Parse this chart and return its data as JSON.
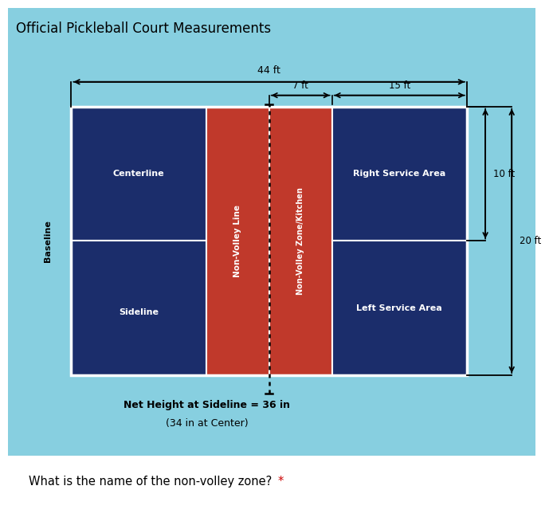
{
  "title": "Official Pickleball Court Measurements",
  "bg_color": "#87cfe0",
  "dark_blue": "#1b2d6b",
  "red": "#c0392b",
  "white": "#ffffff",
  "black": "#000000",
  "question_text": "What is the name of the non-volley zone? *",
  "question_star_color": "#cc0000",
  "net_text_line1": "Net Height at Sideline = 36 in",
  "net_text_line2": "(34 in at Center)",
  "dim_44ft": "44 ft",
  "dim_7ft": "7 ft",
  "dim_15ft": "15 ft",
  "dim_10ft": "10 ft",
  "dim_20ft": "20 ft",
  "label_centerline": "Centerline",
  "label_sideline": "Sideline",
  "label_right_service": "Right Service Area",
  "label_left_service": "Left Service Area",
  "label_nvl": "Non-Volley Line",
  "label_nvz": "Non-Volley Zone/Kitchen",
  "label_baseline": "Baseline"
}
